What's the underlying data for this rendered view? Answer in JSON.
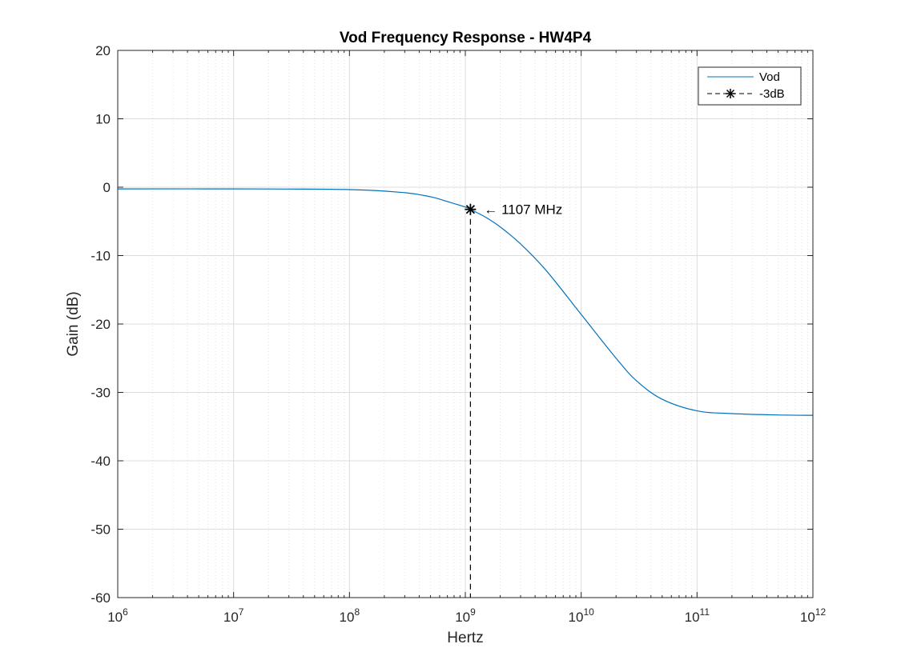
{
  "chart_data": {
    "type": "line",
    "title": "Vod Frequency Response - HW4P4",
    "xlabel": "Hertz",
    "ylabel": "Gain (dB)",
    "xscale": "log",
    "xlim": [
      1000000,
      1000000000000
    ],
    "ylim": [
      -60,
      20
    ],
    "grid": true,
    "minor_grid": true,
    "legend_position": "top-right",
    "x_tick_labels": [
      {
        "base": "10",
        "exp": "6"
      },
      {
        "base": "10",
        "exp": "7"
      },
      {
        "base": "10",
        "exp": "8"
      },
      {
        "base": "10",
        "exp": "9"
      },
      {
        "base": "10",
        "exp": "10"
      },
      {
        "base": "10",
        "exp": "11"
      },
      {
        "base": "10",
        "exp": "12"
      }
    ],
    "x_tick_values": [
      1000000,
      10000000,
      100000000,
      1000000000,
      10000000000,
      100000000000,
      1000000000000
    ],
    "y_tick_labels": [
      "-60",
      "-50",
      "-40",
      "-30",
      "-20",
      "-10",
      "0",
      "10",
      "20"
    ],
    "y_tick_values": [
      -60,
      -50,
      -40,
      -30,
      -20,
      -10,
      0,
      10,
      20
    ],
    "series": [
      {
        "name": "Vod",
        "color": "#0072BD",
        "x": [
          1000000,
          10000000,
          100000000,
          300000000,
          500000000,
          700000000,
          1000000000,
          1107000000,
          1500000000,
          2000000000,
          3000000000,
          5000000000,
          10000000000,
          20000000000,
          30000000000,
          50000000000,
          100000000000,
          200000000000,
          500000000000,
          1000000000000
        ],
        "y": [
          -0.25,
          -0.25,
          -0.35,
          -0.8,
          -1.4,
          -2.1,
          -2.9,
          -3.24,
          -4.4,
          -5.8,
          -8.3,
          -12.2,
          -18.6,
          -25.0,
          -28.3,
          -31.0,
          -32.7,
          -33.1,
          -33.3,
          -33.35
        ]
      },
      {
        "name": "-3dB",
        "color": "#000000",
        "style": "dashed",
        "marker": "asterisk",
        "x": [
          1107000000,
          1107000000
        ],
        "y": [
          -3.24,
          -60
        ]
      }
    ],
    "annotations": [
      {
        "text": "← 1107 MHz",
        "x": 1450000000,
        "y": -3.24
      }
    ]
  }
}
